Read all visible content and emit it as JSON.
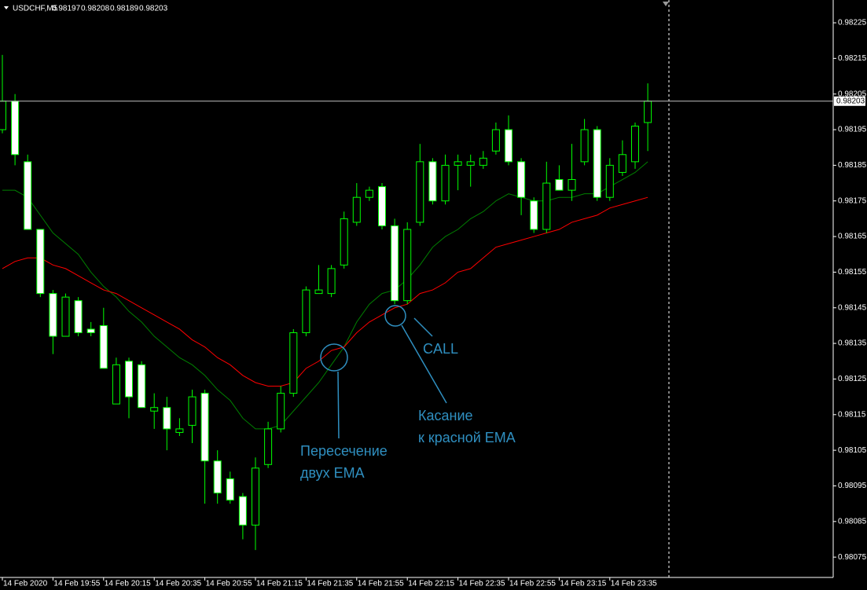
{
  "chart_data": {
    "type": "candlestick",
    "symbol": "USDCHF,M5",
    "categories": [
      "14 Feb 2020",
      null,
      null,
      null,
      "14 Feb 19:55",
      null,
      null,
      null,
      "14 Feb 20:15",
      null,
      null,
      null,
      "14 Feb 20:35",
      null,
      null,
      null,
      "14 Feb 20:55",
      null,
      null,
      null,
      "14 Feb 21:15",
      null,
      null,
      null,
      "14 Feb 21:35",
      null,
      null,
      null,
      "14 Feb 21:55",
      null,
      null,
      null,
      "14 Feb 22:15",
      null,
      null,
      null,
      "14 Feb 22:35",
      null,
      null,
      null,
      "14 Feb 22:55",
      null,
      null,
      null,
      "14 Feb 23:15",
      null,
      null,
      null,
      "14 Feb 23:35",
      null,
      null,
      null
    ],
    "ohlc": [
      [
        0.98195,
        0.98216,
        0.98194,
        0.98203
      ],
      [
        0.98203,
        0.98205,
        0.98185,
        0.98188
      ],
      [
        0.98186,
        0.98188,
        0.98167,
        0.98167
      ],
      [
        0.98167,
        0.98167,
        0.98148,
        0.98149
      ],
      [
        0.98149,
        0.9815,
        0.98132,
        0.98137
      ],
      [
        0.98137,
        0.98149,
        0.98137,
        0.98148
      ],
      [
        0.98147,
        0.98148,
        0.98137,
        0.98138
      ],
      [
        0.98139,
        0.98141,
        0.98137,
        0.98138
      ],
      [
        0.9814,
        0.98145,
        0.98128,
        0.98128
      ],
      [
        0.98118,
        0.98131,
        0.98118,
        0.98129
      ],
      [
        0.9813,
        0.98131,
        0.98114,
        0.9812
      ],
      [
        0.98129,
        0.9813,
        0.98117,
        0.98117
      ],
      [
        0.98116,
        0.98121,
        0.98111,
        0.98117
      ],
      [
        0.98117,
        0.9812,
        0.98105,
        0.98111
      ],
      [
        0.9811,
        0.98114,
        0.98109,
        0.98111
      ],
      [
        0.98112,
        0.98122,
        0.98107,
        0.9812
      ],
      [
        0.98121,
        0.98122,
        0.9809,
        0.98102
      ],
      [
        0.98102,
        0.98105,
        0.9809,
        0.98093
      ],
      [
        0.98097,
        0.98099,
        0.9809,
        0.98091
      ],
      [
        0.98092,
        0.98093,
        0.9808,
        0.98084
      ],
      [
        0.98084,
        0.98103,
        0.98077,
        0.981
      ],
      [
        0.98101,
        0.98113,
        0.981,
        0.98111
      ],
      [
        0.98111,
        0.98123,
        0.9811,
        0.98121
      ],
      [
        0.98121,
        0.98139,
        0.9812,
        0.98138
      ],
      [
        0.98138,
        0.98151,
        0.98137,
        0.9815
      ],
      [
        0.98149,
        0.98157,
        0.98149,
        0.9815
      ],
      [
        0.98149,
        0.98157,
        0.98148,
        0.98156
      ],
      [
        0.98157,
        0.98172,
        0.98156,
        0.9817
      ],
      [
        0.98169,
        0.9818,
        0.98168,
        0.98176
      ],
      [
        0.98176,
        0.98179,
        0.98175,
        0.98178
      ],
      [
        0.98179,
        0.9818,
        0.98167,
        0.98168
      ],
      [
        0.98168,
        0.9817,
        0.98146,
        0.98147
      ],
      [
        0.98147,
        0.98169,
        0.98146,
        0.98167
      ],
      [
        0.98169,
        0.98191,
        0.98168,
        0.98186
      ],
      [
        0.98186,
        0.98187,
        0.98174,
        0.98175
      ],
      [
        0.98175,
        0.98188,
        0.98174,
        0.98185
      ],
      [
        0.98185,
        0.98188,
        0.98178,
        0.98186
      ],
      [
        0.98185,
        0.98188,
        0.98179,
        0.98186
      ],
      [
        0.98185,
        0.98189,
        0.98184,
        0.98187
      ],
      [
        0.98189,
        0.98197,
        0.98188,
        0.98195
      ],
      [
        0.98195,
        0.98199,
        0.98185,
        0.98186
      ],
      [
        0.98186,
        0.98187,
        0.98171,
        0.98176
      ],
      [
        0.98175,
        0.98176,
        0.98166,
        0.98167
      ],
      [
        0.98167,
        0.98186,
        0.98166,
        0.9818
      ],
      [
        0.98181,
        0.98185,
        0.98178,
        0.98178
      ],
      [
        0.98178,
        0.98191,
        0.98175,
        0.98181
      ],
      [
        0.98186,
        0.98198,
        0.98185,
        0.98195
      ],
      [
        0.98195,
        0.98196,
        0.98175,
        0.98176
      ],
      [
        0.98176,
        0.98187,
        0.98175,
        0.98185
      ],
      [
        0.98183,
        0.98192,
        0.98182,
        0.98188
      ],
      [
        0.98186,
        0.98197,
        0.98184,
        0.98196
      ],
      [
        0.98197,
        0.98208,
        0.98189,
        0.98203
      ]
    ],
    "bull_color": "#00ff00",
    "bear_color": "#ffffff",
    "lines": [
      {
        "color": "#008000",
        "values": [
          0.98178,
          0.98178,
          0.98176,
          0.98171,
          0.98166,
          0.98163,
          0.9816,
          0.98155,
          0.98151,
          0.98148,
          0.98144,
          0.98141,
          0.98137,
          0.98134,
          0.98131,
          0.98129,
          0.98126,
          0.98122,
          0.98119,
          0.98114,
          0.98111,
          0.98111,
          0.98112,
          0.98116,
          0.9812,
          0.98124,
          0.98129,
          0.98134,
          0.98141,
          0.98146,
          0.98149,
          0.9815,
          0.98153,
          0.98157,
          0.98162,
          0.98165,
          0.98167,
          0.9817,
          0.98172,
          0.98175,
          0.98177,
          0.98176,
          0.98175,
          0.98175,
          0.98176,
          0.98176,
          0.98177,
          0.98177,
          0.98179,
          0.98181,
          0.98183,
          0.98186
        ]
      },
      {
        "color": "#ff0000",
        "values": [
          0.98156,
          0.98158,
          0.98159,
          0.98159,
          0.98157,
          0.98156,
          0.98154,
          0.98152,
          0.9815,
          0.98149,
          0.98147,
          0.98145,
          0.98143,
          0.98141,
          0.98139,
          0.98136,
          0.98134,
          0.98131,
          0.98129,
          0.98126,
          0.98124,
          0.98123,
          0.98123,
          0.98124,
          0.98128,
          0.9813,
          0.98133,
          0.98134,
          0.98138,
          0.98141,
          0.98143,
          0.98145,
          0.98146,
          0.98149,
          0.9815,
          0.98152,
          0.98155,
          0.98156,
          0.98159,
          0.98162,
          0.98163,
          0.98164,
          0.98165,
          0.98166,
          0.98167,
          0.98169,
          0.9817,
          0.98171,
          0.98173,
          0.98174,
          0.98175,
          0.98176
        ]
      }
    ],
    "ylim": [
      0.980693,
      0.982314
    ],
    "yticks": [
      0.98225,
      0.98215,
      0.98205,
      0.98195,
      0.98185,
      0.98175,
      0.98165,
      0.98155,
      0.98145,
      0.98135,
      0.98125,
      0.98115,
      0.98105,
      0.98095,
      0.98085,
      0.98075
    ],
    "annotations": {
      "cross": [
        "Пересечение",
        "двух EMA"
      ],
      "touch": [
        "Касание",
        "к красной EMA"
      ],
      "signal": "CALL"
    }
  }
}
